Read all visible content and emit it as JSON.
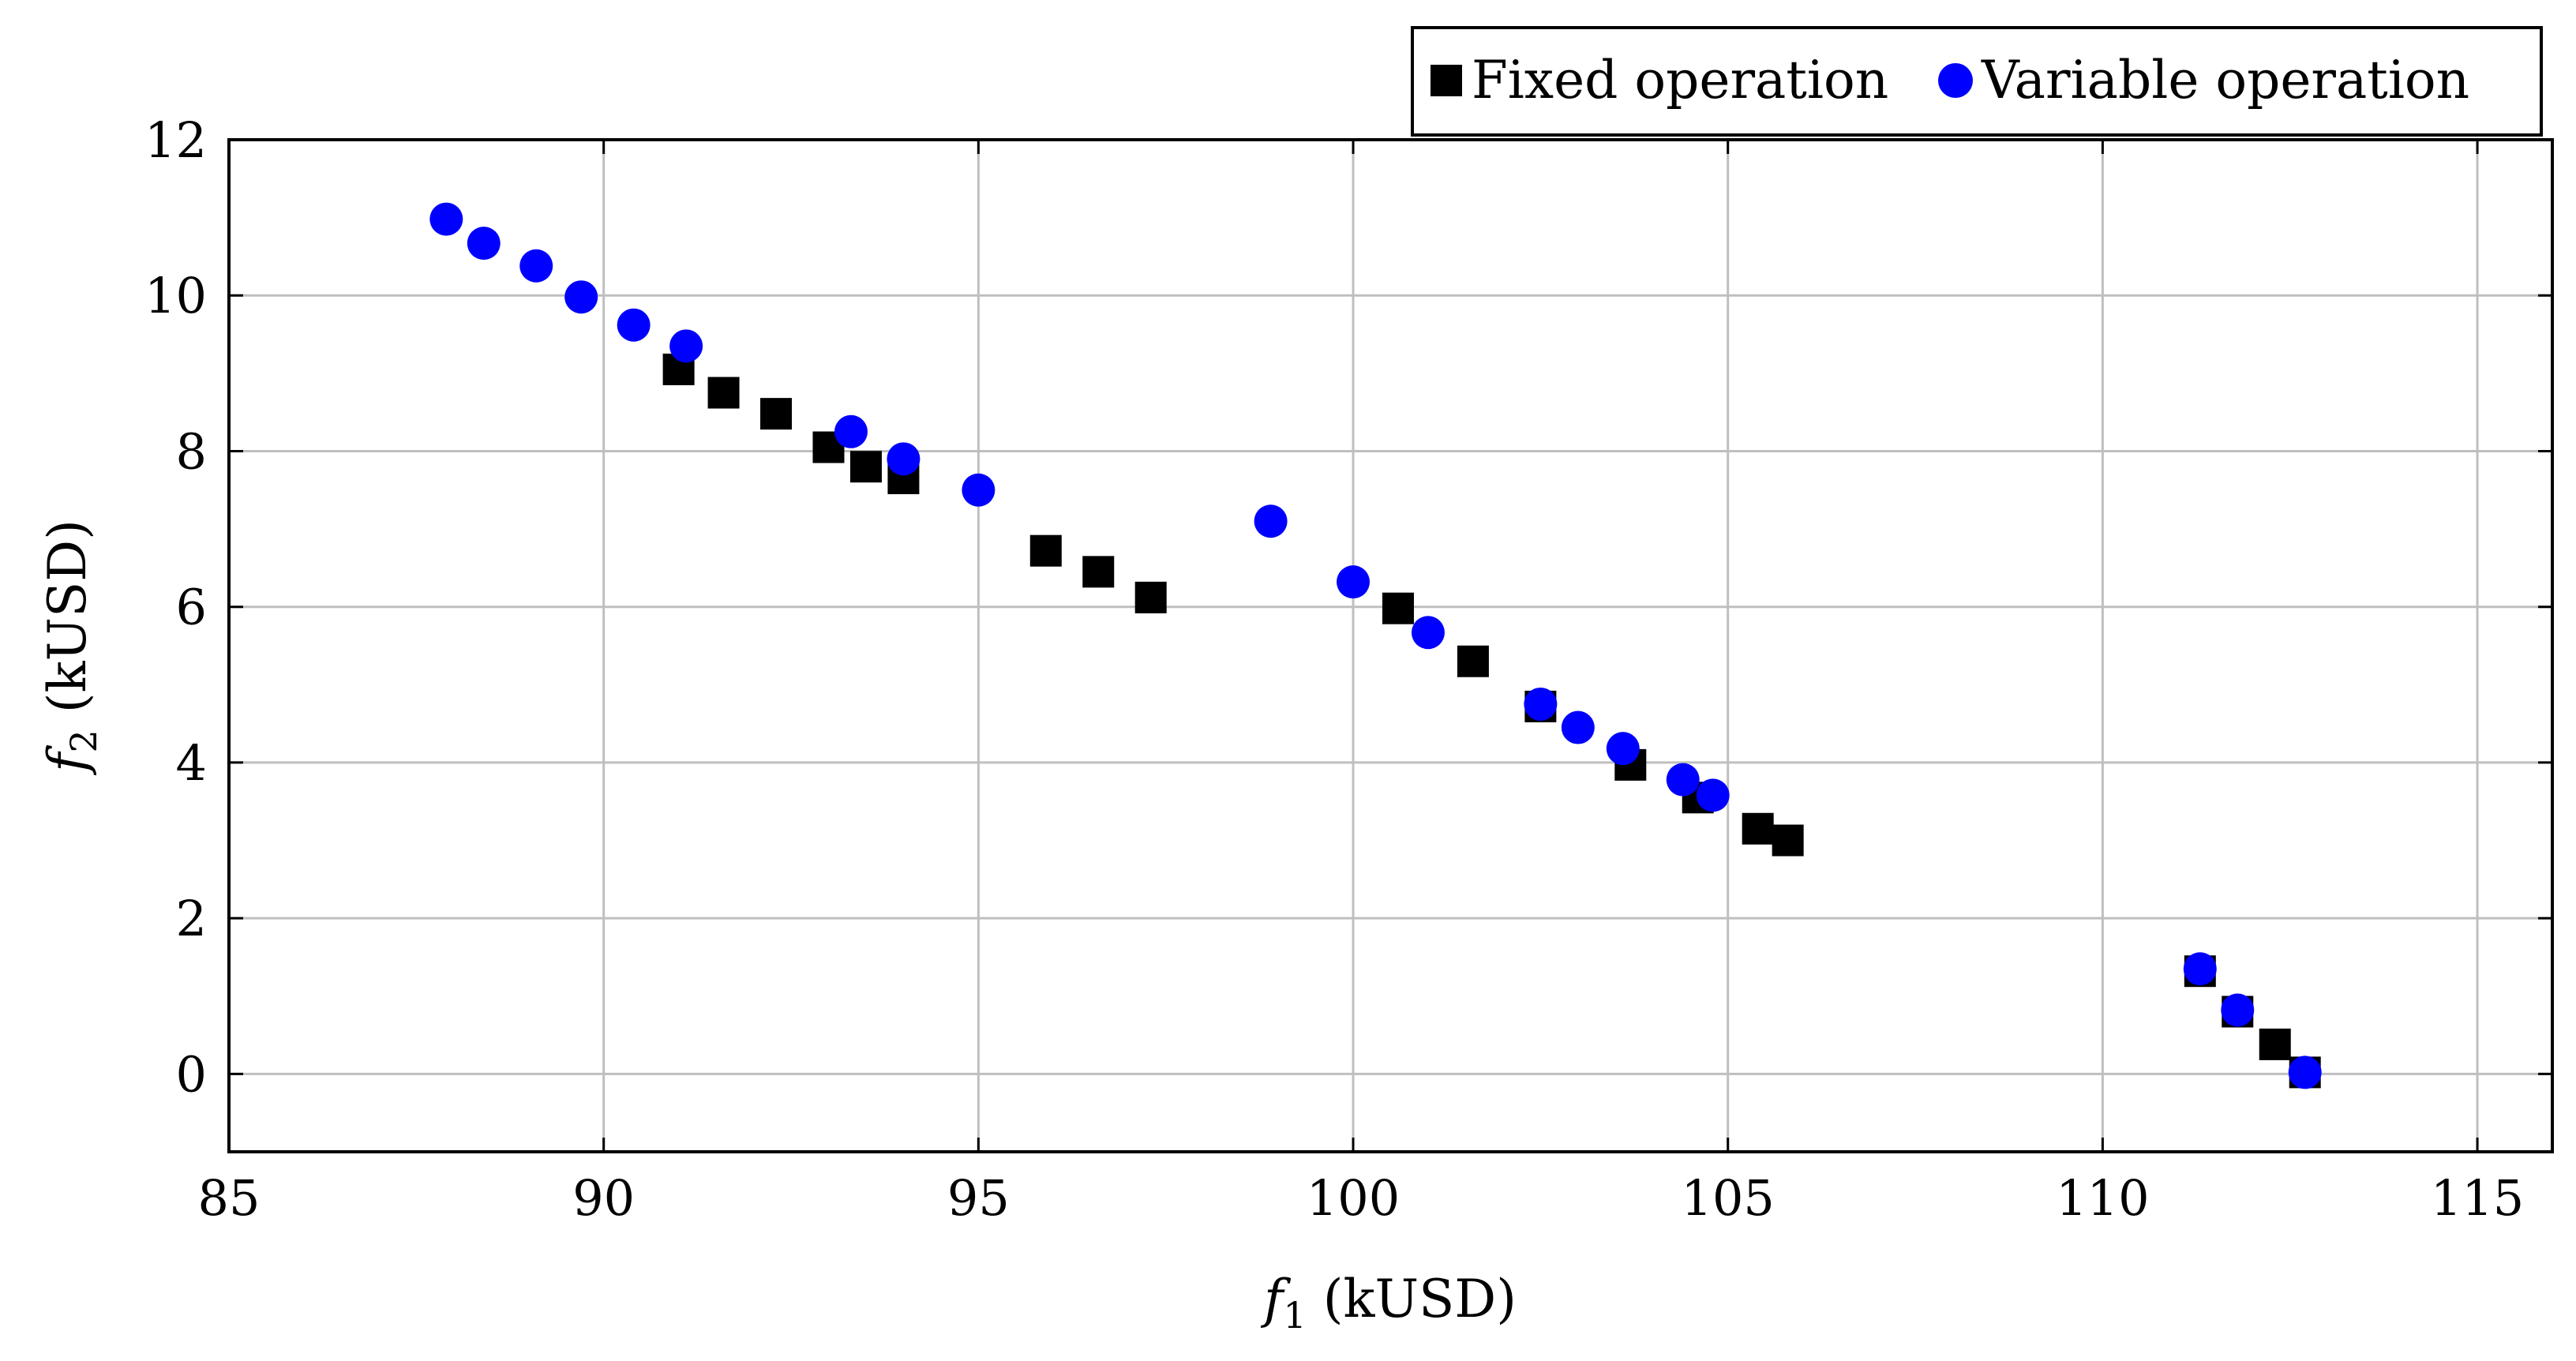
{
  "chart_data": {
    "type": "scatter",
    "xlabel": {
      "symbol": "f",
      "subscript": "1",
      "unit": " (kUSD)"
    },
    "ylabel": {
      "symbol": "f",
      "subscript": "2",
      "unit": " (kUSD)"
    },
    "xlim": [
      85,
      116
    ],
    "ylim": [
      -1,
      12
    ],
    "xticks": [
      85,
      90,
      95,
      100,
      105,
      110,
      115
    ],
    "yticks": [
      0,
      2,
      4,
      6,
      8,
      10,
      12
    ],
    "grid": true,
    "legend_position": "top-right, outside plot",
    "series": [
      {
        "name": "Fixed operation",
        "marker": "square",
        "color": "#000000",
        "points": [
          [
            91.0,
            9.05
          ],
          [
            91.6,
            8.75
          ],
          [
            92.3,
            8.48
          ],
          [
            93.0,
            8.05
          ],
          [
            93.5,
            7.8
          ],
          [
            94.0,
            7.65
          ],
          [
            95.9,
            6.72
          ],
          [
            96.6,
            6.45
          ],
          [
            97.3,
            6.12
          ],
          [
            100.6,
            5.98
          ],
          [
            101.6,
            5.3
          ],
          [
            102.5,
            4.72
          ],
          [
            103.7,
            3.97
          ],
          [
            104.6,
            3.55
          ],
          [
            105.4,
            3.15
          ],
          [
            105.8,
            3.0
          ],
          [
            111.3,
            1.32
          ],
          [
            111.8,
            0.8
          ],
          [
            112.3,
            0.38
          ],
          [
            112.7,
            0.02
          ]
        ]
      },
      {
        "name": "Variable operation",
        "marker": "circle",
        "color": "#0000ff",
        "points": [
          [
            87.9,
            10.98
          ],
          [
            88.4,
            10.67
          ],
          [
            89.1,
            10.38
          ],
          [
            89.7,
            9.98
          ],
          [
            90.4,
            9.62
          ],
          [
            91.1,
            9.35
          ],
          [
            93.3,
            8.25
          ],
          [
            94.0,
            7.9
          ],
          [
            95.0,
            7.5
          ],
          [
            98.9,
            7.1
          ],
          [
            100.0,
            6.32
          ],
          [
            101.0,
            5.67
          ],
          [
            102.5,
            4.75
          ],
          [
            103.0,
            4.45
          ],
          [
            103.6,
            4.18
          ],
          [
            104.4,
            3.78
          ],
          [
            104.8,
            3.58
          ],
          [
            111.3,
            1.35
          ],
          [
            111.8,
            0.82
          ],
          [
            112.7,
            0.02
          ]
        ]
      }
    ]
  }
}
